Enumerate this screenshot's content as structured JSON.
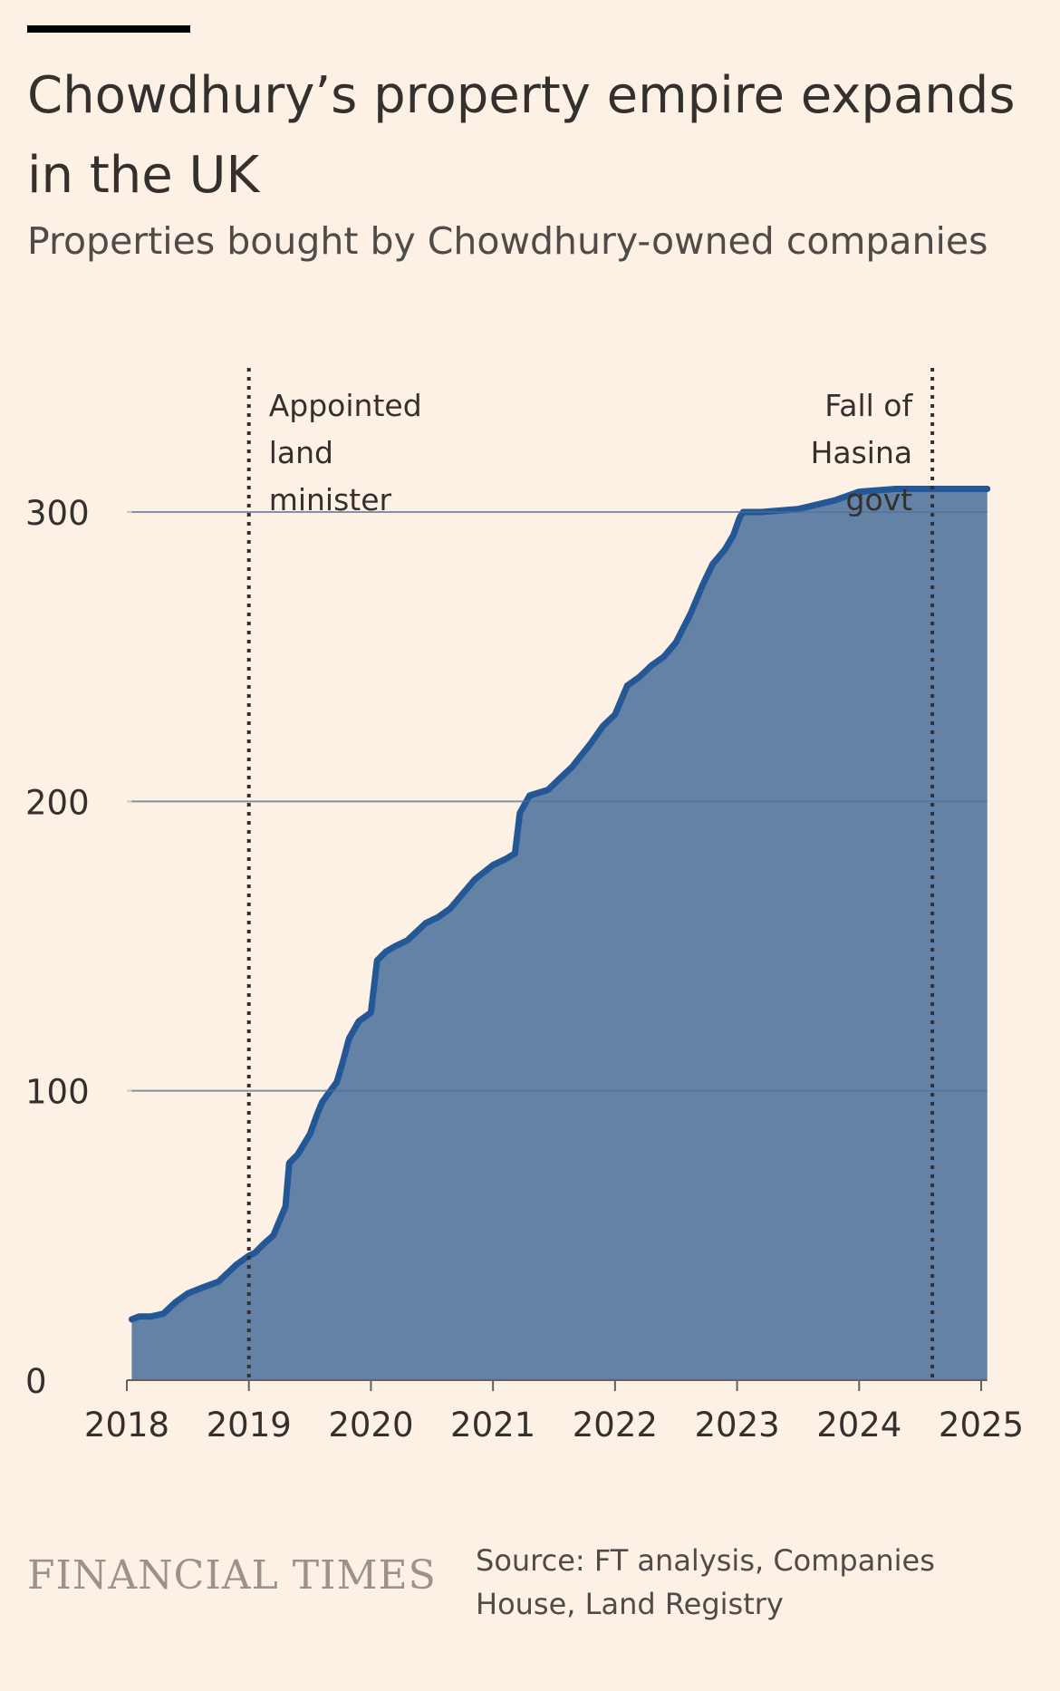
{
  "header": {
    "title": "Chowdhury’s property empire expands in the UK",
    "subtitle": "Properties bought by Chowdhury-owned companies"
  },
  "footer": {
    "brand": "FINANCIAL TIMES",
    "source": "Source: FT analysis, Companies House, Land Registry"
  },
  "colors": {
    "background": "#fdf1e6",
    "area_fill": "#6382a6",
    "line": "#235796",
    "gridline": "#cfc5bb",
    "text": "#33302e"
  },
  "chart_data": {
    "type": "area",
    "title": "Chowdhury’s property empire expands in the UK",
    "subtitle": "Properties bought by Chowdhury-owned companies",
    "xlim": [
      2018.0,
      2025.05
    ],
    "ylim": [
      0,
      340
    ],
    "x_ticks": [
      2018,
      2019,
      2020,
      2021,
      2022,
      2023,
      2024,
      2025
    ],
    "x_tick_labels": [
      "2018",
      "2019",
      "2020",
      "2021",
      "2022",
      "2023",
      "2024",
      "2025"
    ],
    "y_ticks": [
      0,
      100,
      200,
      300
    ],
    "y_tick_labels": [
      "0",
      "100",
      "200",
      "300"
    ],
    "grid": "horizontal",
    "series": [
      {
        "x": [
          2018.04,
          2018.1,
          2018.2,
          2018.3,
          2018.4,
          2018.5,
          2018.62,
          2018.75,
          2018.9,
          2019.0,
          2019.05,
          2019.12,
          2019.2,
          2019.3,
          2019.33,
          2019.4,
          2019.5,
          2019.56,
          2019.6,
          2019.65,
          2019.72,
          2019.77,
          2019.82,
          2019.9,
          2020.0,
          2020.05,
          2020.12,
          2020.2,
          2020.3,
          2020.45,
          2020.55,
          2020.65,
          2020.75,
          2020.85,
          2021.0,
          2021.1,
          2021.18,
          2021.22,
          2021.3,
          2021.45,
          2021.55,
          2021.65,
          2021.8,
          2021.9,
          2022.0,
          2022.1,
          2022.2,
          2022.3,
          2022.4,
          2022.5,
          2022.62,
          2022.67,
          2022.72,
          2022.8,
          2022.9,
          2022.97,
          2023.02,
          2023.05,
          2023.2,
          2023.5,
          2023.8,
          2024.0,
          2024.3,
          2024.6,
          2025.05
        ],
        "y": [
          21,
          22,
          22,
          23,
          27,
          30,
          32,
          34,
          40,
          43,
          44,
          47,
          50,
          60,
          75,
          78,
          85,
          92,
          96,
          99,
          103,
          110,
          118,
          124,
          127,
          145,
          148,
          150,
          152,
          158,
          160,
          163,
          168,
          173,
          178,
          180,
          182,
          196,
          202,
          204,
          208,
          212,
          220,
          226,
          230,
          240,
          243,
          247,
          250,
          255,
          265,
          270,
          275,
          282,
          287,
          292,
          298,
          300,
          300,
          301,
          304,
          307,
          308,
          308,
          308
        ]
      }
    ],
    "annotations": [
      {
        "x": 2019.0,
        "text": "Appointed land minister",
        "lines": [
          "Appointed",
          "land",
          "minister"
        ],
        "align": "right-of-line"
      },
      {
        "x": 2024.6,
        "text": "Fall of Hasina govt",
        "lines": [
          "Fall of",
          "Hasina",
          "govt"
        ],
        "align": "left-of-line"
      }
    ]
  }
}
